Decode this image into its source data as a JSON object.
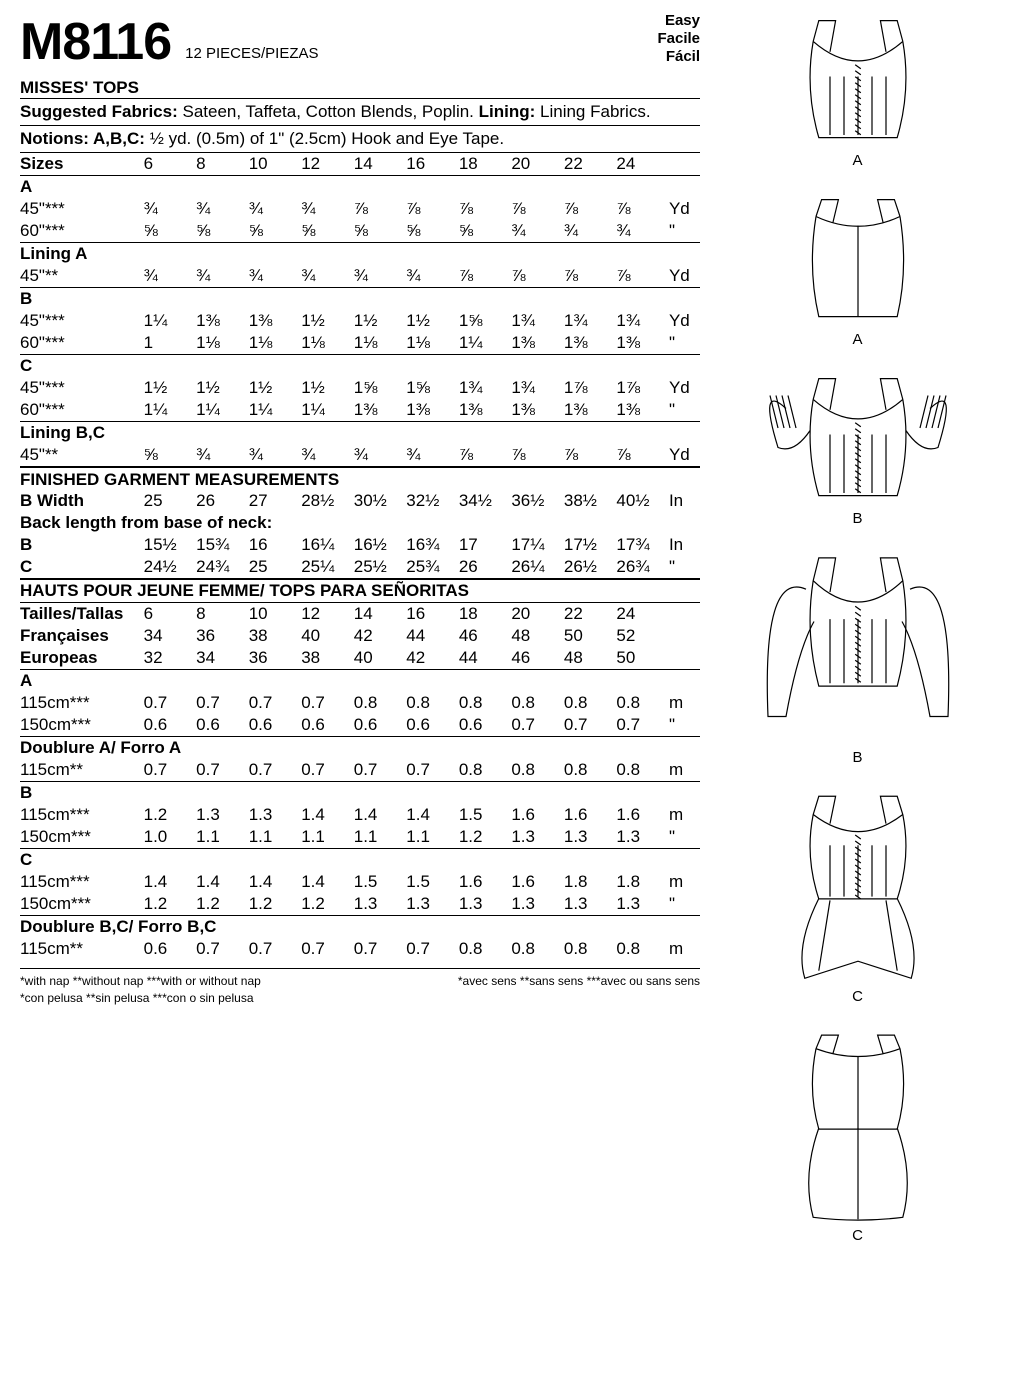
{
  "header": {
    "pattern_number": "M8116",
    "pieces": "12 PIECES/PIEZAS",
    "difficulty": [
      "Easy",
      "Facile",
      "Fácil"
    ]
  },
  "title": "MISSES' TOPS",
  "fabrics_label": "Suggested Fabrics:",
  "fabrics_text": " Sateen, Taffeta, Cotton Blends, Poplin. ",
  "lining_label": "Lining:",
  "lining_text": " Lining Fabrics.",
  "notions_label": "Notions: A,B,C:",
  "notions_text": " ½ yd. (0.5m) of 1\" (2.5cm) Hook and Eye Tape.",
  "sizes_label": "Sizes",
  "sizes": [
    "6",
    "8",
    "10",
    "12",
    "14",
    "16",
    "18",
    "20",
    "22",
    "24"
  ],
  "us_groups": [
    {
      "head": "A",
      "rows": [
        {
          "label": "45\"***",
          "vals": [
            "¾",
            "¾",
            "¾",
            "¾",
            "⅞",
            "⅞",
            "⅞",
            "⅞",
            "⅞",
            "⅞"
          ],
          "unit": "Yd"
        },
        {
          "label": "60\"***",
          "vals": [
            "⅝",
            "⅝",
            "⅝",
            "⅝",
            "⅝",
            "⅝",
            "⅝",
            "¾",
            "¾",
            "¾"
          ],
          "unit": "\""
        }
      ]
    },
    {
      "head": "Lining A",
      "rows": [
        {
          "label": "45\"**",
          "vals": [
            "¾",
            "¾",
            "¾",
            "¾",
            "¾",
            "¾",
            "⅞",
            "⅞",
            "⅞",
            "⅞"
          ],
          "unit": "Yd"
        }
      ]
    },
    {
      "head": "B",
      "rows": [
        {
          "label": "45\"***",
          "vals": [
            "1¼",
            "1⅜",
            "1⅜",
            "1½",
            "1½",
            "1½",
            "1⅝",
            "1¾",
            "1¾",
            "1¾"
          ],
          "unit": "Yd"
        },
        {
          "label": "60\"***",
          "vals": [
            "1",
            "1⅛",
            "1⅛",
            "1⅛",
            "1⅛",
            "1⅛",
            "1¼",
            "1⅜",
            "1⅜",
            "1⅜"
          ],
          "unit": "\""
        }
      ]
    },
    {
      "head": "C",
      "rows": [
        {
          "label": "45\"***",
          "vals": [
            "1½",
            "1½",
            "1½",
            "1½",
            "1⅝",
            "1⅝",
            "1¾",
            "1¾",
            "1⅞",
            "1⅞"
          ],
          "unit": "Yd"
        },
        {
          "label": "60\"***",
          "vals": [
            "1¼",
            "1¼",
            "1¼",
            "1¼",
            "1⅜",
            "1⅜",
            "1⅜",
            "1⅜",
            "1⅜",
            "1⅜"
          ],
          "unit": "\""
        }
      ]
    },
    {
      "head": "Lining B,C",
      "rows": [
        {
          "label": "45\"**",
          "vals": [
            "⅝",
            "¾",
            "¾",
            "¾",
            "¾",
            "¾",
            "⅞",
            "⅞",
            "⅞",
            "⅞"
          ],
          "unit": "Yd"
        }
      ]
    }
  ],
  "fgm_title": "FINISHED GARMENT MEASUREMENTS",
  "fgm_rows": [
    {
      "label": "B Width",
      "vals": [
        "25",
        "26",
        "27",
        "28½",
        "30½",
        "32½",
        "34½",
        "36½",
        "38½",
        "40½"
      ],
      "unit": "In"
    }
  ],
  "back_length_title": "Back length from base of neck:",
  "back_length_rows": [
    {
      "label": "B",
      "vals": [
        "15½",
        "15¾",
        "16",
        "16¼",
        "16½",
        "16¾",
        "17",
        "17¼",
        "17½",
        "17¾"
      ],
      "unit": "In"
    },
    {
      "label": "C",
      "vals": [
        "24½",
        "24¾",
        "25",
        "25¼",
        "25½",
        "25¾",
        "26",
        "26¼",
        "26½",
        "26¾"
      ],
      "unit": "\""
    }
  ],
  "intl_title": "HAUTS POUR JEUNE FEMME/ TOPS PARA SEÑORITAS",
  "intl_size_rows": [
    {
      "label": "Tailles/Tallas",
      "vals": [
        "6",
        "8",
        "10",
        "12",
        "14",
        "16",
        "18",
        "20",
        "22",
        "24"
      ]
    },
    {
      "label": "Françaises",
      "vals": [
        "34",
        "36",
        "38",
        "40",
        "42",
        "44",
        "46",
        "48",
        "50",
        "52"
      ]
    },
    {
      "label": "Europeas",
      "vals": [
        "32",
        "34",
        "36",
        "38",
        "40",
        "42",
        "44",
        "46",
        "48",
        "50"
      ]
    }
  ],
  "metric_groups": [
    {
      "head": "A",
      "rows": [
        {
          "label": "115cm***",
          "vals": [
            "0.7",
            "0.7",
            "0.7",
            "0.7",
            "0.8",
            "0.8",
            "0.8",
            "0.8",
            "0.8",
            "0.8"
          ],
          "unit": "m"
        },
        {
          "label": "150cm***",
          "vals": [
            "0.6",
            "0.6",
            "0.6",
            "0.6",
            "0.6",
            "0.6",
            "0.6",
            "0.7",
            "0.7",
            "0.7"
          ],
          "unit": "\""
        }
      ]
    },
    {
      "head": "Doublure A/ Forro A",
      "rows": [
        {
          "label": "115cm**",
          "vals": [
            "0.7",
            "0.7",
            "0.7",
            "0.7",
            "0.7",
            "0.7",
            "0.8",
            "0.8",
            "0.8",
            "0.8"
          ],
          "unit": "m"
        }
      ]
    },
    {
      "head": "B",
      "rows": [
        {
          "label": "115cm***",
          "vals": [
            "1.2",
            "1.3",
            "1.3",
            "1.4",
            "1.4",
            "1.4",
            "1.5",
            "1.6",
            "1.6",
            "1.6"
          ],
          "unit": "m"
        },
        {
          "label": "150cm***",
          "vals": [
            "1.0",
            "1.1",
            "1.1",
            "1.1",
            "1.1",
            "1.1",
            "1.2",
            "1.3",
            "1.3",
            "1.3"
          ],
          "unit": "\""
        }
      ]
    },
    {
      "head": "C",
      "rows": [
        {
          "label": "115cm***",
          "vals": [
            "1.4",
            "1.4",
            "1.4",
            "1.4",
            "1.5",
            "1.5",
            "1.6",
            "1.6",
            "1.8",
            "1.8"
          ],
          "unit": "m"
        },
        {
          "label": "150cm***",
          "vals": [
            "1.2",
            "1.2",
            "1.2",
            "1.2",
            "1.3",
            "1.3",
            "1.3",
            "1.3",
            "1.3",
            "1.3"
          ],
          "unit": "\""
        }
      ]
    },
    {
      "head": "Doublure B,C/ Forro B,C",
      "rows": [
        {
          "label": "115cm**",
          "vals": [
            "0.6",
            "0.7",
            "0.7",
            "0.7",
            "0.7",
            "0.7",
            "0.8",
            "0.8",
            "0.8",
            "0.8"
          ],
          "unit": "m"
        }
      ]
    }
  ],
  "footnotes": {
    "left": [
      "*with nap   **without nap   ***with or without nap",
      "*con pelusa   **sin pelusa   ***con o sin pelusa"
    ],
    "right": [
      "*avec sens   **sans sens   ***avec ou sans sens"
    ]
  },
  "sketches": [
    {
      "label": "A",
      "type": "front"
    },
    {
      "label": "A",
      "type": "back"
    },
    {
      "label": "B",
      "type": "puff"
    },
    {
      "label": "B",
      "type": "long"
    },
    {
      "label": "C",
      "type": "peplum-front"
    },
    {
      "label": "C",
      "type": "peplum-back"
    }
  ],
  "style": {
    "stroke": "#000000",
    "stroke_width": 1.2
  }
}
